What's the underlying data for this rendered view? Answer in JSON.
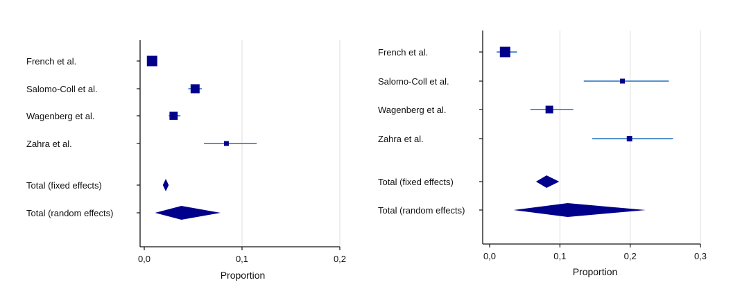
{
  "chart_data": [
    {
      "type": "forest",
      "xlabel": "Proportion",
      "xlim": [
        0,
        0.2
      ],
      "xticks": [
        "0,0",
        "0,1",
        "0,2"
      ],
      "xtick_values": [
        0,
        0.1,
        0.2
      ],
      "grid": "vertical",
      "colors": {
        "marker": "#00008b",
        "line": "#1f6fbf",
        "axis": "#111111",
        "grid": "#dddddd"
      },
      "studies": [
        {
          "label": "French et al.",
          "estimate": 0.008,
          "ci": [
            0.008,
            0.008
          ],
          "weight": 3
        },
        {
          "label": "Salomo-Coll et al.",
          "estimate": 0.052,
          "ci": [
            0.045,
            0.059
          ],
          "weight": 2.5
        },
        {
          "label": "Wagenberg et al.",
          "estimate": 0.03,
          "ci": [
            0.025,
            0.037
          ],
          "weight": 2.2
        },
        {
          "label": "Zahra et al.",
          "estimate": 0.084,
          "ci": [
            0.061,
            0.115
          ],
          "weight": 1
        }
      ],
      "pooled": [
        {
          "label": "Total (fixed effects)",
          "estimate": 0.022,
          "ci": [
            0.019,
            0.025
          ]
        },
        {
          "label": "Total (random effects)",
          "estimate": 0.038,
          "ci": [
            0.011,
            0.078
          ]
        }
      ]
    },
    {
      "type": "forest",
      "xlabel": "Proportion",
      "xlim": [
        0,
        0.3
      ],
      "xticks": [
        "0,0",
        "0,1",
        "0,2",
        "0,3"
      ],
      "xtick_values": [
        0,
        0.1,
        0.2,
        0.3
      ],
      "grid": "vertical",
      "colors": {
        "marker": "#00008b",
        "line": "#1f6fbf",
        "axis": "#111111",
        "grid": "#dddddd"
      },
      "studies": [
        {
          "label": "French et al.",
          "estimate": 0.022,
          "ci": [
            0.01,
            0.039
          ],
          "weight": 3
        },
        {
          "label": "Salomo-Coll et al.",
          "estimate": 0.189,
          "ci": [
            0.134,
            0.255
          ],
          "weight": 1
        },
        {
          "label": "Wagenberg et al.",
          "estimate": 0.085,
          "ci": [
            0.058,
            0.119
          ],
          "weight": 2
        },
        {
          "label": "Zahra et al.",
          "estimate": 0.199,
          "ci": [
            0.146,
            0.261
          ],
          "weight": 1.2
        }
      ],
      "pooled": [
        {
          "label": "Total (fixed effects)",
          "estimate": 0.081,
          "ci": [
            0.066,
            0.099
          ]
        },
        {
          "label": "Total (random effects)",
          "estimate": 0.111,
          "ci": [
            0.034,
            0.222
          ]
        }
      ]
    }
  ]
}
